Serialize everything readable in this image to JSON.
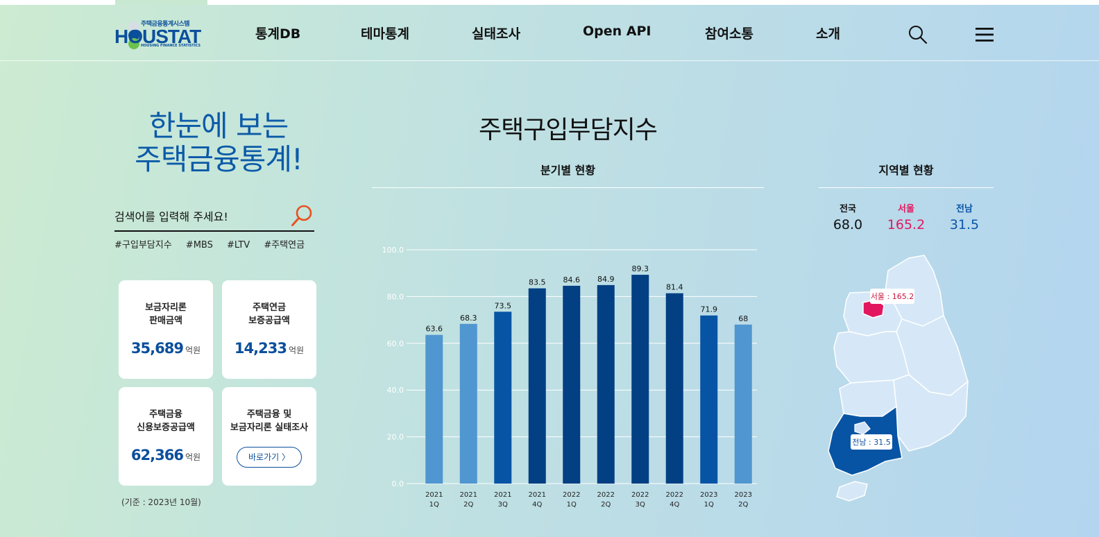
{
  "header": {
    "logo": {
      "small": "주택금융통계시스템",
      "main": "HOUSTAT",
      "sub": "HOUSING FINANCE STATISTICS"
    },
    "nav": [
      {
        "label": "통계DB"
      },
      {
        "label": "테마통계"
      },
      {
        "label": "실태조사"
      },
      {
        "label": "Open API"
      },
      {
        "label": "참여소통"
      },
      {
        "label": "소개"
      }
    ],
    "search_icon": "search-icon",
    "menu_icon": "hamburger-menu-icon"
  },
  "hero": {
    "line1": "한눈에 보는",
    "line2": "주택금융통계!"
  },
  "search": {
    "placeholder": "검색어를 입력해 주세요!",
    "tags": [
      "#구입부담지수",
      "#MBS",
      "#LTV",
      "#주택연금"
    ]
  },
  "cards": [
    {
      "title_line1": "보금자리론",
      "title_line2": "판매금액",
      "value": "35,689",
      "unit": "억원"
    },
    {
      "title_line1": "주택연금",
      "title_line2": "보증공급액",
      "value": "14,233",
      "unit": "억원"
    },
    {
      "title_line1": "주택금융",
      "title_line2": "신용보증공급액",
      "value": "62,366",
      "unit": "억원"
    },
    {
      "title_line1": "주택금융 및",
      "title_line2": "보금자리론 실태조사",
      "button": "바로가기 〉"
    }
  ],
  "basis": "(기준 : 2023년 10월)",
  "main_title": "주택구입부담지수",
  "quarterly_title": "분기별 현황",
  "regional_title": "지역별 현황",
  "chart_data": {
    "type": "bar",
    "categories": [
      [
        "2021",
        "1Q"
      ],
      [
        "2021",
        "2Q"
      ],
      [
        "2021",
        "3Q"
      ],
      [
        "2021",
        "4Q"
      ],
      [
        "2022",
        "1Q"
      ],
      [
        "2022",
        "2Q"
      ],
      [
        "2022",
        "3Q"
      ],
      [
        "2022",
        "4Q"
      ],
      [
        "2023",
        "1Q"
      ],
      [
        "2023",
        "2Q"
      ]
    ],
    "values": [
      63.6,
      68.3,
      73.5,
      83.5,
      84.6,
      84.9,
      89.3,
      81.4,
      71.9,
      68
    ],
    "value_labels": [
      "63.6",
      "68.3",
      "73.5",
      "83.5",
      "84.6",
      "84.9",
      "89.3",
      "81.4",
      "71.9",
      "68"
    ],
    "bar_colors": [
      "#5096d0",
      "#5096d0",
      "#0754a5",
      "#033f83",
      "#033f83",
      "#033f83",
      "#033f83",
      "#033f83",
      "#0754a5",
      "#5096d0"
    ],
    "yticks": [
      "0.0",
      "20.0",
      "40.0",
      "60.0",
      "80.0",
      "100.0"
    ],
    "ylim": [
      0,
      100
    ],
    "grid": true,
    "legend": "none"
  },
  "regions": [
    {
      "name": "전국",
      "value": "68.0",
      "color": "#111111"
    },
    {
      "name": "서울",
      "value": "165.2",
      "color": "#e3175f"
    },
    {
      "name": "전남",
      "value": "31.5",
      "color": "#0b55a8"
    }
  ],
  "map_labels": {
    "seoul": "서울 : 165.2",
    "jeonnam": "전남 : 31.5"
  },
  "colors": {
    "accent": "#0b4f9c",
    "seoul": "#e3175f",
    "jeonnam": "#0754a5",
    "map_base": "#d6e8f7",
    "search_icon": "#e8501f"
  }
}
